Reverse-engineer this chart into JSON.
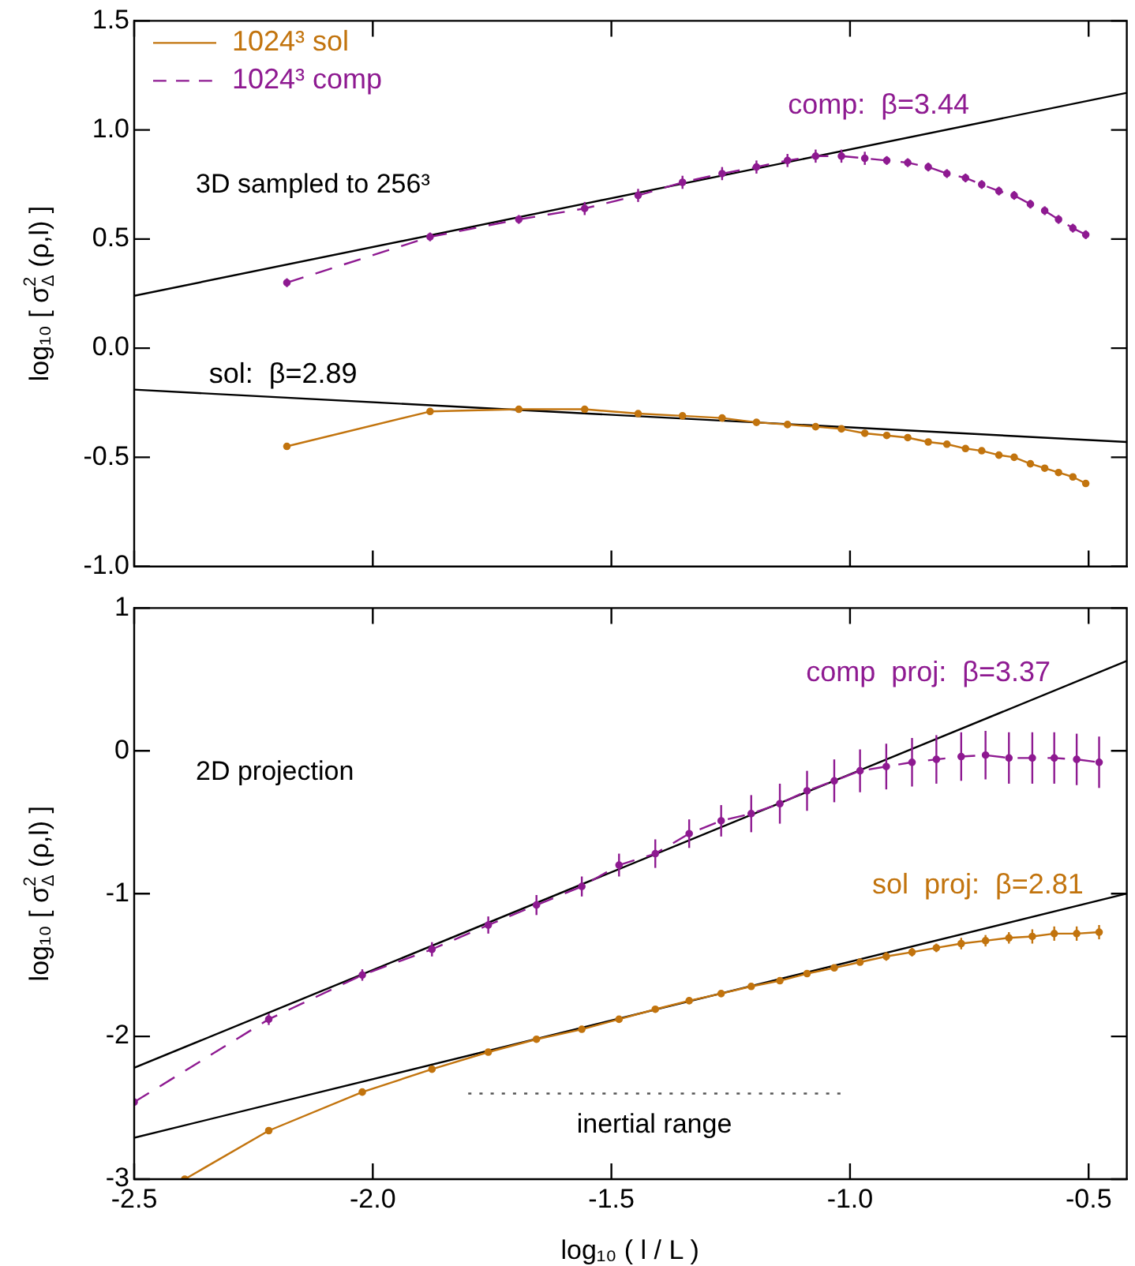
{
  "chart_data": [
    {
      "type": "line",
      "xlim": [
        -2.5,
        -0.42
      ],
      "xticks": [
        {
          "value": -2.5,
          "label": null
        },
        {
          "value": -2,
          "label": null
        },
        {
          "value": -1.5,
          "label": null
        },
        {
          "value": -1,
          "label": null
        },
        {
          "value": -0.5,
          "label": null
        }
      ],
      "ylim": [
        -1,
        1.5
      ],
      "yticks": [
        {
          "value": -1,
          "label": "-1.0"
        },
        -0.5,
        {
          "value": 0,
          "label": "0.0"
        },
        0.5,
        {
          "value": 1,
          "label": "1.0"
        },
        1.5
      ],
      "ylabel": "log₁₀ [ σ$_{Δ}$$^{2}$ (ρ,l) ]",
      "tick_labels": "y",
      "legend": "top left",
      "annotations": [
        "3D sampled to 256³"
      ],
      "series": [
        {
          "name": "1024³ sol",
          "color": "#c2740e",
          "line_style": "solid",
          "marker": "circle",
          "x": [
            -2.18,
            -1.88,
            -1.694,
            -1.556,
            -1.444,
            -1.351,
            -1.268,
            -1.196,
            -1.131,
            -1.072,
            -1.018,
            -0.969,
            -0.923,
            -0.879,
            -0.836,
            -0.797,
            -0.758,
            -0.724,
            -0.688,
            -0.656,
            -0.622,
            -0.592,
            -0.563,
            -0.533,
            -0.506
          ],
          "values": [
            -0.45,
            -0.29,
            -0.28,
            -0.28,
            -0.3,
            -0.31,
            -0.32,
            -0.34,
            -0.35,
            -0.36,
            -0.37,
            -0.39,
            -0.4,
            -0.41,
            -0.43,
            -0.44,
            -0.46,
            -0.47,
            -0.49,
            -0.5,
            -0.53,
            -0.55,
            -0.57,
            -0.59,
            -0.62
          ]
        },
        {
          "name": "1024³ comp",
          "color": "#8e1a91",
          "line_style": "dashed",
          "marker": "circle",
          "x": [
            -2.18,
            -1.88,
            -1.694,
            -1.556,
            -1.444,
            -1.351,
            -1.268,
            -1.196,
            -1.131,
            -1.072,
            -1.018,
            -0.969,
            -0.923,
            -0.879,
            -0.836,
            -0.797,
            -0.758,
            -0.724,
            -0.688,
            -0.656,
            -0.622,
            -0.592,
            -0.563,
            -0.533,
            -0.506
          ],
          "values": [
            0.3,
            0.51,
            0.59,
            0.64,
            0.7,
            0.76,
            0.8,
            0.83,
            0.86,
            0.88,
            0.88,
            0.87,
            0.86,
            0.85,
            0.83,
            0.8,
            0.78,
            0.75,
            0.72,
            0.7,
            0.66,
            0.63,
            0.59,
            0.55,
            0.52
          ],
          "errors": [
            0.02,
            0.02,
            0.02,
            0.03,
            0.03,
            0.03,
            0.03,
            0.03,
            0.03,
            0.03,
            0.03,
            0.03,
            0.02,
            0.02,
            0.02,
            0.02,
            0.02,
            0.02,
            0.02,
            0.02,
            0.02,
            0.02,
            0.02,
            0.02,
            0.02
          ]
        },
        {
          "name": "comp:  β=3.44",
          "type": "line",
          "color": "#000000",
          "marker": "none",
          "x": [
            -2.5,
            -0.42
          ],
          "values": [
            0.24,
            1.17
          ]
        },
        {
          "name": "sol:  β=2.89",
          "type": "line",
          "color": "#000000",
          "marker": "none",
          "x": [
            -2.5,
            -0.42
          ],
          "values": [
            -0.19,
            -0.43
          ]
        }
      ]
    },
    {
      "type": "line",
      "xlim": [
        -2.5,
        -0.42
      ],
      "xticks": [
        -2.5,
        {
          "value": -2,
          "label": "-2.0"
        },
        -1.5,
        {
          "value": -1,
          "label": "-1.0"
        },
        -0.5
      ],
      "ylim": [
        -3,
        1
      ],
      "yticks": [
        -3,
        -2,
        -1,
        0,
        1
      ],
      "xlabel": "log₁₀ ( l / L )",
      "ylabel": "log₁₀ [ σ$_{Δ}$$^{2}$ (ρ,l) ]",
      "annotations": [
        "2D projection",
        "inertial range"
      ],
      "series": [
        {
          "color": "#c2740e",
          "line_style": "solid",
          "marker": "circle",
          "x": [
            -2.394,
            -2.218,
            -2.022,
            -1.876,
            -1.758,
            -1.657,
            -1.562,
            -1.484,
            -1.408,
            -1.337,
            -1.27,
            -1.207,
            -1.147,
            -1.09,
            -1.033,
            -0.979,
            -0.924,
            -0.87,
            -0.819,
            -0.767,
            -0.716,
            -0.667,
            -0.618,
            -0.572,
            -0.525,
            -0.478
          ],
          "values": [
            -3.0,
            -2.66,
            -2.39,
            -2.23,
            -2.11,
            -2.02,
            -1.95,
            -1.88,
            -1.81,
            -1.75,
            -1.7,
            -1.65,
            -1.61,
            -1.56,
            -1.52,
            -1.48,
            -1.44,
            -1.41,
            -1.38,
            -1.35,
            -1.33,
            -1.31,
            -1.3,
            -1.28,
            -1.28,
            -1.27
          ],
          "errors": [
            null,
            0.01,
            0.01,
            0.01,
            0.01,
            0.01,
            0.01,
            0.01,
            0.01,
            0.02,
            0.02,
            0.02,
            0.02,
            0.02,
            0.02,
            0.02,
            0.03,
            0.03,
            0.03,
            0.04,
            0.04,
            0.04,
            0.05,
            0.05,
            0.05,
            0.05
          ]
        },
        {
          "color": "#8e1a91",
          "line_style": "dashed",
          "marker": "circle",
          "x": [
            -2.5,
            -2.218,
            -2.022,
            -1.876,
            -1.758,
            -1.657,
            -1.562,
            -1.484,
            -1.408,
            -1.337,
            -1.27,
            -1.207,
            -1.147,
            -1.09,
            -1.033,
            -0.979,
            -0.924,
            -0.87,
            -0.819,
            -0.767,
            -0.716,
            -0.667,
            -0.618,
            -0.572,
            -0.525,
            -0.478
          ],
          "values": [
            -2.46,
            -1.88,
            -1.57,
            -1.39,
            -1.22,
            -1.08,
            -0.95,
            -0.8,
            -0.72,
            -0.58,
            -0.49,
            -0.44,
            -0.37,
            -0.28,
            -0.21,
            -0.14,
            -0.11,
            -0.08,
            -0.06,
            -0.04,
            -0.03,
            -0.05,
            -0.05,
            -0.05,
            -0.06,
            -0.08
          ],
          "errors": [
            null,
            0.04,
            0.04,
            0.05,
            0.06,
            0.07,
            0.07,
            0.08,
            0.1,
            0.1,
            0.11,
            0.13,
            0.14,
            0.14,
            0.15,
            0.15,
            0.16,
            0.17,
            0.17,
            0.17,
            0.17,
            0.18,
            0.18,
            0.18,
            0.18,
            0.18
          ]
        },
        {
          "name": "comp  proj:  β=3.37",
          "type": "line",
          "color": "#000000",
          "marker": "none",
          "x": [
            -2.5,
            -0.42
          ],
          "values": [
            -2.22,
            0.63
          ]
        },
        {
          "name": "sol  proj:  β=2.81",
          "type": "line",
          "color": "#000000",
          "marker": "none",
          "x": [
            -2.5,
            -0.42
          ],
          "values": [
            -2.71,
            -1.0
          ]
        },
        {
          "type": "line",
          "color": "#555555",
          "marker": "none",
          "line_style": "dotted",
          "x": [
            -1.8,
            -1.02
          ],
          "values": [
            -2.4,
            -2.4
          ]
        }
      ]
    }
  ]
}
